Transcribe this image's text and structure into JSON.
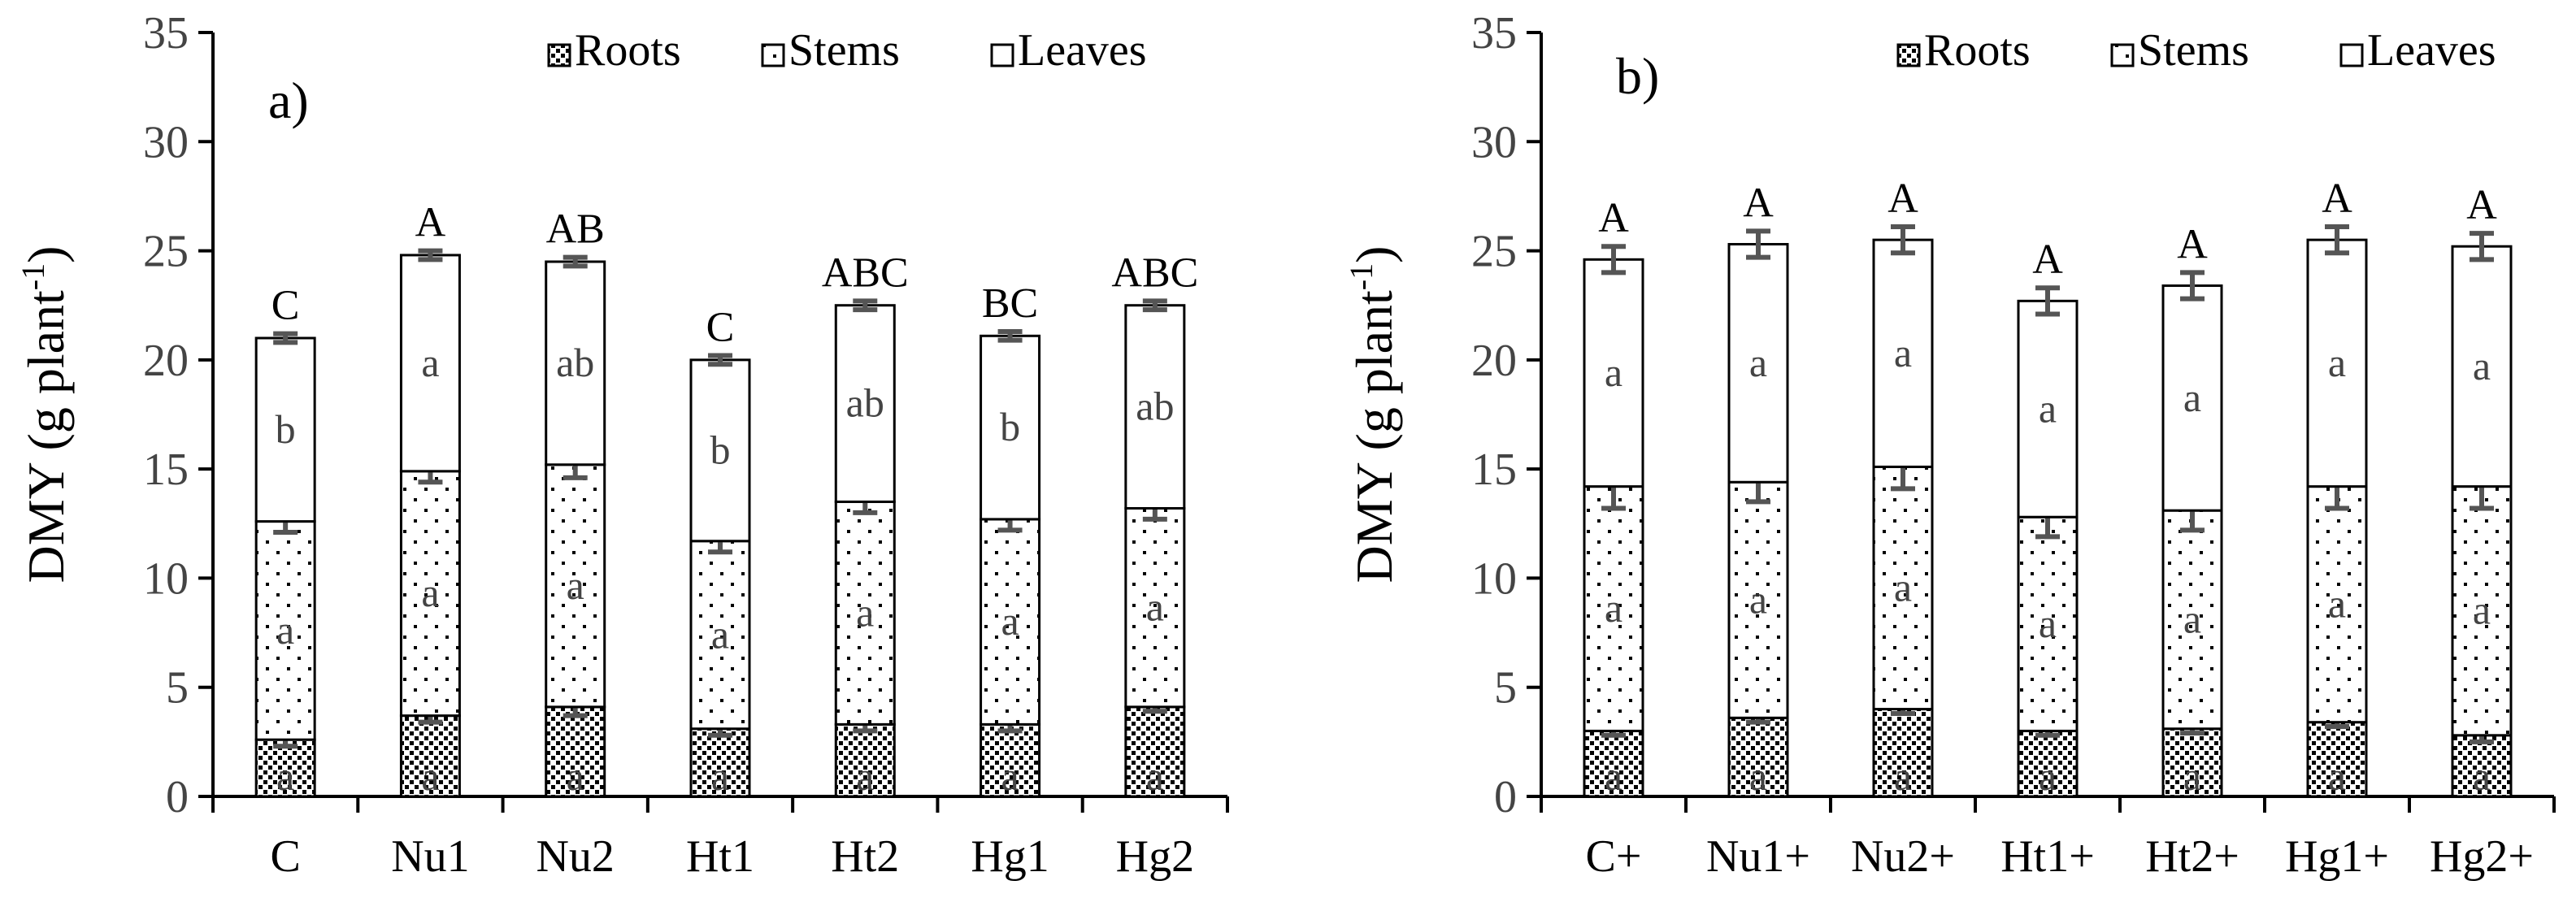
{
  "chart_data": [
    {
      "type": "bar",
      "stacked": true,
      "panel_label": "a)",
      "ylabel": "DMY (g plant",
      "ylabel_sup": "-1",
      "ylabel_close": ")",
      "ylim": [
        0,
        35
      ],
      "yticks": [
        0,
        5,
        10,
        15,
        20,
        25,
        30,
        35
      ],
      "legend_position": "top-right",
      "categories": [
        "C",
        "Nu1",
        "Nu2",
        "Ht1",
        "Ht2",
        "Hg1",
        "Hg2"
      ],
      "series": [
        {
          "name": "Roots",
          "values": [
            2.6,
            3.7,
            4.1,
            3.1,
            3.3,
            3.3,
            4.1
          ],
          "errors": [
            0.3,
            0.3,
            0.4,
            0.3,
            0.3,
            0.3,
            0.2
          ],
          "letters": [
            "a",
            "a",
            "a",
            "a",
            "a",
            "a",
            "a"
          ]
        },
        {
          "name": "Stems",
          "values": [
            10.0,
            11.2,
            11.1,
            8.6,
            10.2,
            9.4,
            9.1
          ],
          "errors": [
            0.5,
            0.5,
            0.6,
            0.5,
            0.5,
            0.5,
            0.5
          ],
          "letters": [
            "a",
            "a",
            "a",
            "a",
            "a",
            "a",
            "a"
          ]
        },
        {
          "name": "Leaves",
          "values": [
            8.4,
            9.9,
            9.3,
            8.3,
            9.0,
            8.4,
            9.3
          ],
          "errors": [
            0.2,
            0.2,
            0.2,
            0.2,
            0.2,
            0.2,
            0.2
          ],
          "letters": [
            "b",
            "a",
            "ab",
            "b",
            "ab",
            "b",
            "ab"
          ]
        }
      ],
      "totals": [
        21.0,
        24.8,
        24.5,
        20.0,
        22.5,
        21.1,
        22.5
      ],
      "total_letters": [
        "C",
        "A",
        "AB",
        "C",
        "ABC",
        "BC",
        "ABC"
      ]
    },
    {
      "type": "bar",
      "stacked": true,
      "panel_label": "b)",
      "ylabel": "DMY (g plant",
      "ylabel_sup": "-1",
      "ylabel_close": ")",
      "ylim": [
        0,
        35
      ],
      "yticks": [
        0,
        5,
        10,
        15,
        20,
        25,
        30,
        35
      ],
      "legend_position": "top-right",
      "categories": [
        "C+",
        "Nu1+",
        "Nu2+",
        "Ht1+",
        "Ht2+",
        "Hg1+",
        "Hg2+"
      ],
      "series": [
        {
          "name": "Roots",
          "values": [
            3.0,
            3.6,
            4.0,
            3.0,
            3.1,
            3.4,
            2.8
          ],
          "errors": [
            0.2,
            0.2,
            0.2,
            0.2,
            0.2,
            0.2,
            0.3
          ],
          "letters": [
            "a",
            "a",
            "a",
            "a",
            "a",
            "a",
            "a"
          ]
        },
        {
          "name": "Stems",
          "values": [
            11.2,
            10.8,
            11.1,
            9.8,
            10.0,
            10.8,
            11.4
          ],
          "errors": [
            1.0,
            0.9,
            1.0,
            0.9,
            0.9,
            1.0,
            1.0
          ],
          "letters": [
            "a",
            "a",
            "a",
            "a",
            "a",
            "a",
            "a"
          ]
        },
        {
          "name": "Leaves",
          "values": [
            10.4,
            10.9,
            10.4,
            9.9,
            10.3,
            11.3,
            11.0
          ],
          "errors": [
            0.6,
            0.6,
            0.6,
            0.6,
            0.6,
            0.6,
            0.6
          ],
          "letters": [
            "a",
            "a",
            "a",
            "a",
            "a",
            "a",
            "a"
          ]
        }
      ],
      "totals": [
        24.6,
        25.3,
        25.5,
        22.7,
        23.4,
        25.5,
        25.2
      ],
      "total_letters": [
        "A",
        "A",
        "A",
        "A",
        "A",
        "A",
        "A"
      ]
    }
  ]
}
